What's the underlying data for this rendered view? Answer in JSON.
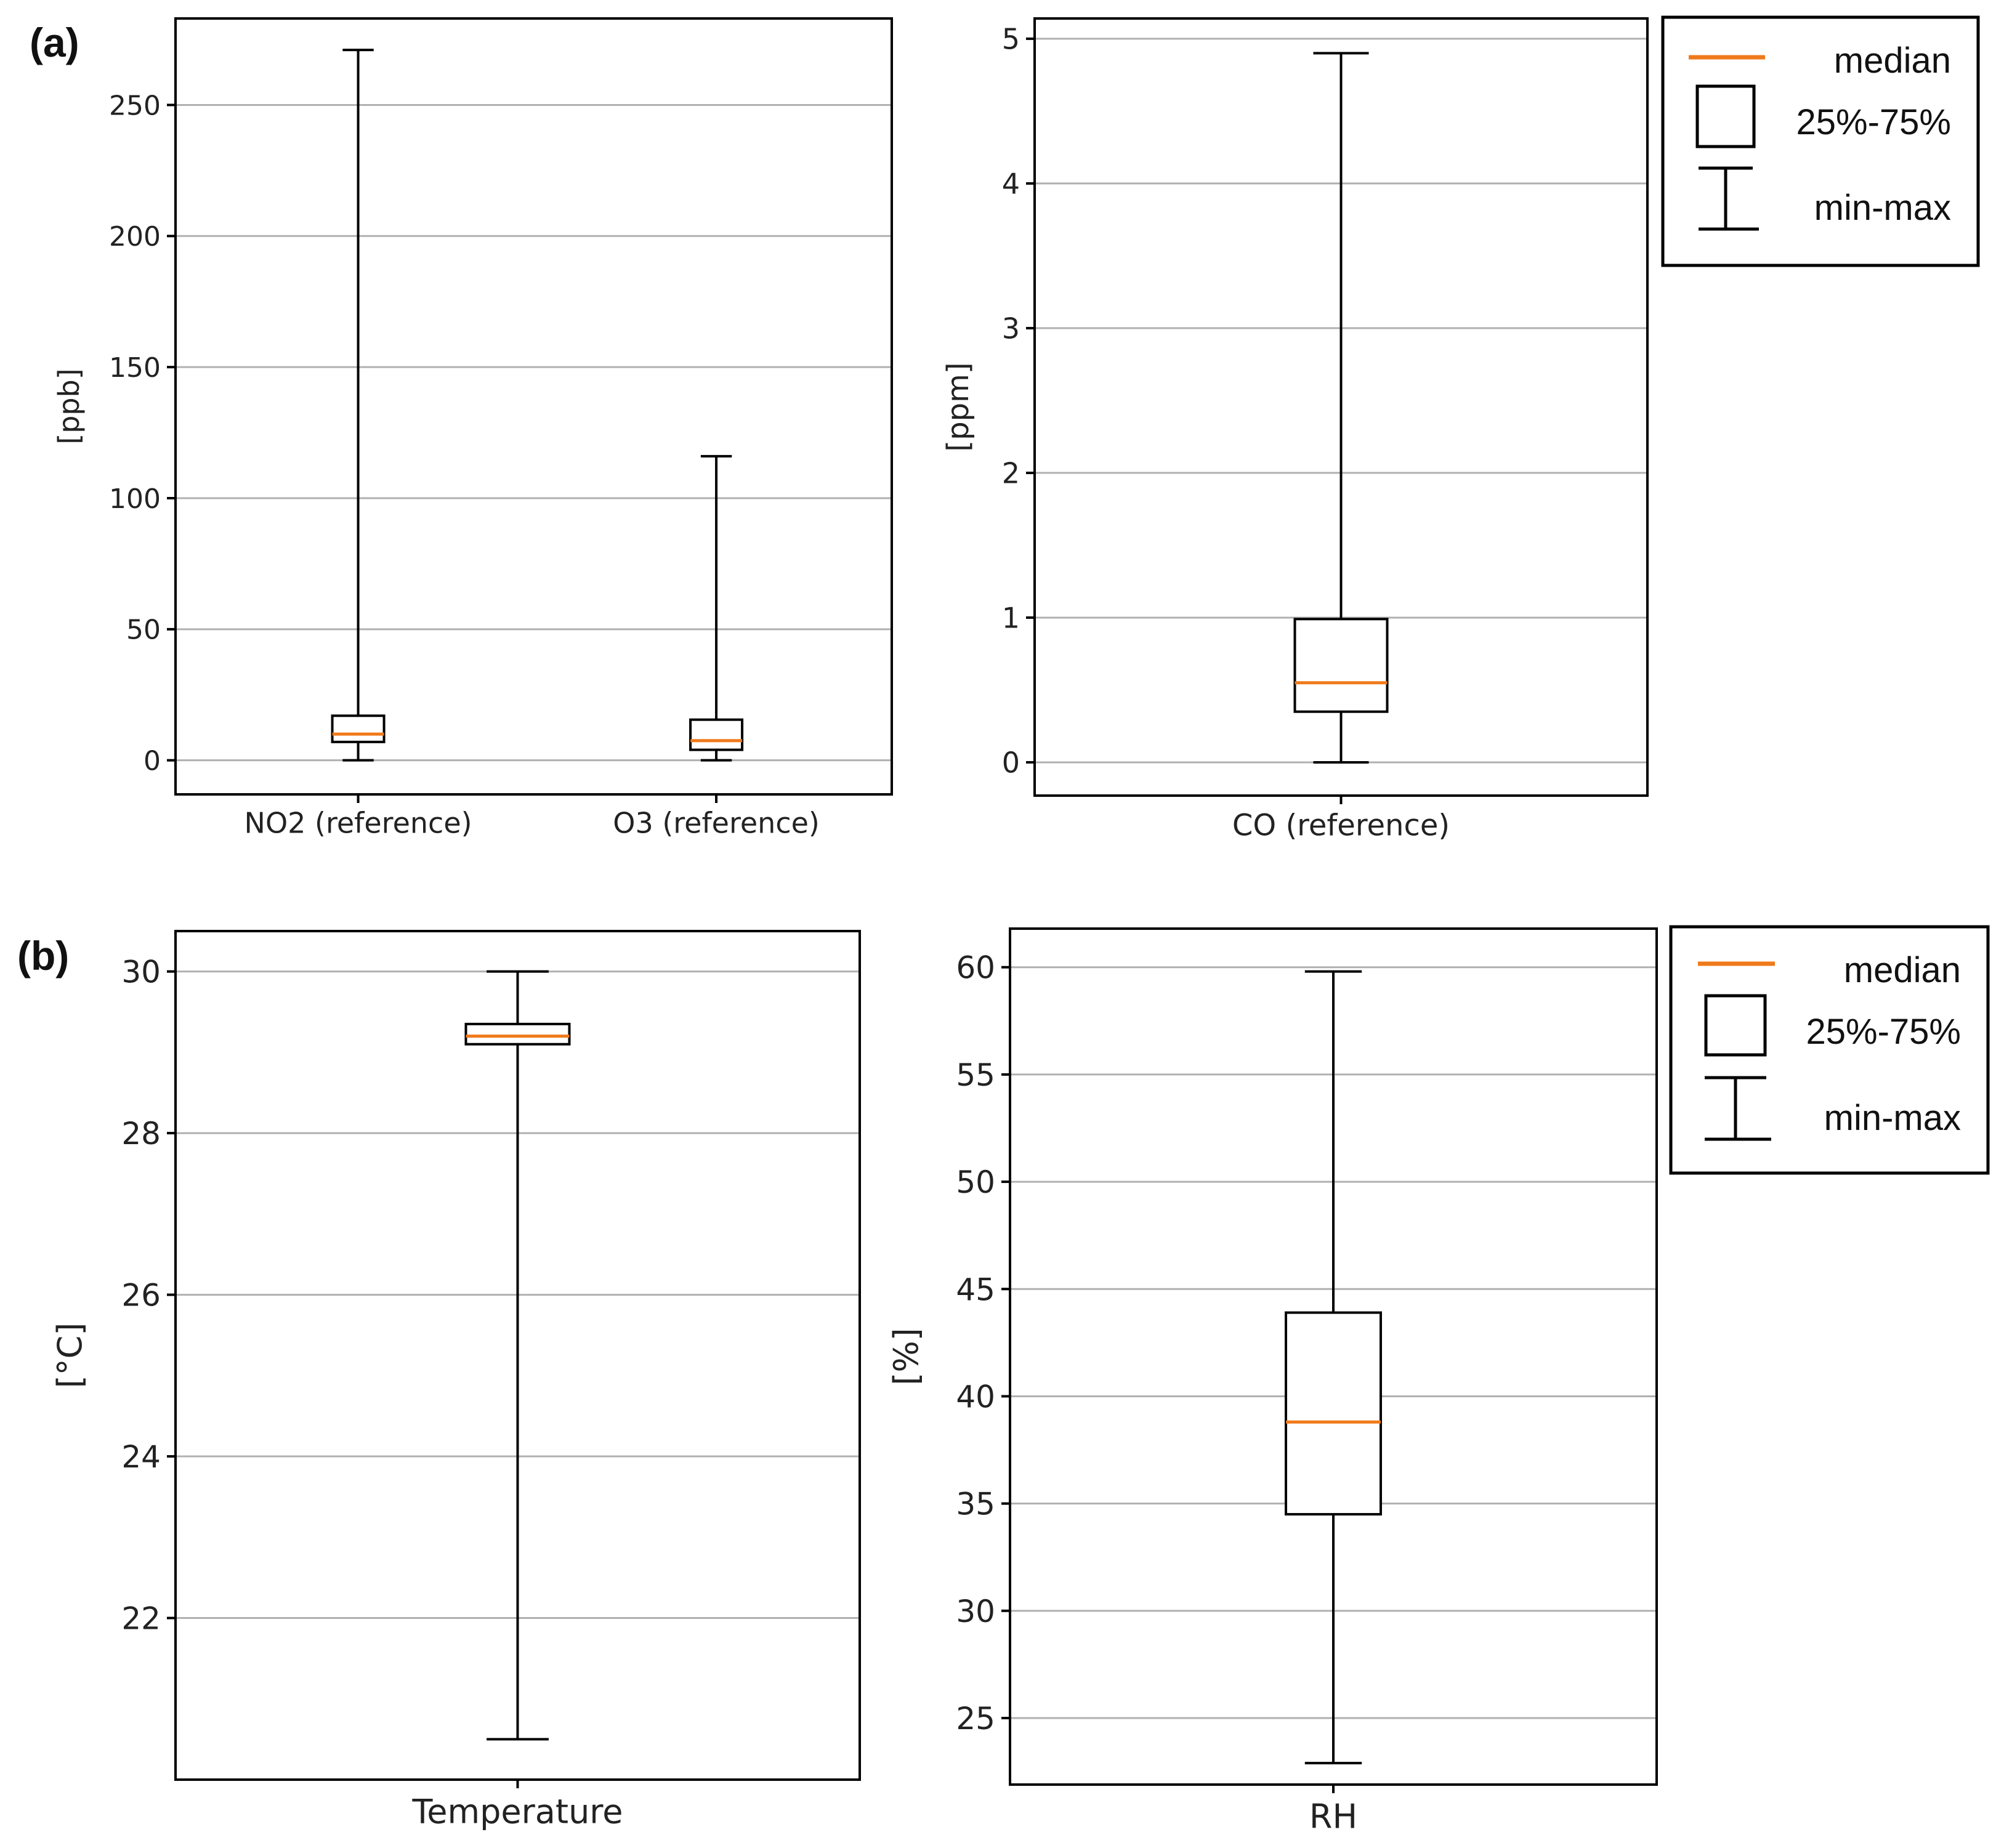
{
  "colors": {
    "median": "#f07a1a",
    "grid": "#b0b0b0",
    "axis": "#000000",
    "whisker": "#000000"
  },
  "panel_labels": {
    "a": "(a)",
    "b": "(b)"
  },
  "legend": {
    "median": "median",
    "box": "25%-75%",
    "whisker": "min-max"
  },
  "chart_data": [
    {
      "type": "box",
      "name": "no2-o3-panel",
      "ylabel": "[ppb]",
      "ylim": [
        -13,
        283
      ],
      "yticks": [
        0,
        50,
        100,
        150,
        200,
        250
      ],
      "ytick_labels": [
        "0",
        "50",
        "100",
        "150",
        "200",
        "250"
      ],
      "grid": true,
      "categories": [
        "NO2 (reference)",
        "O3 (reference)"
      ],
      "boxes": [
        {
          "name": "NO2 (reference)",
          "min": 0,
          "q1": 7,
          "median": 10,
          "q3": 17,
          "max": 271
        },
        {
          "name": "O3 (reference)",
          "min": 0,
          "q1": 4,
          "median": 7.5,
          "q3": 15.5,
          "max": 116
        }
      ]
    },
    {
      "type": "box",
      "name": "co-panel",
      "ylabel": "[ppm]",
      "ylim": [
        -0.23,
        5.14
      ],
      "yticks": [
        0,
        1,
        2,
        3,
        4,
        5
      ],
      "ytick_labels": [
        "0",
        "1",
        "2",
        "3",
        "4",
        "5"
      ],
      "grid": true,
      "categories": [
        "CO (reference)"
      ],
      "boxes": [
        {
          "name": "CO (reference)",
          "min": 0,
          "q1": 0.35,
          "median": 0.55,
          "q3": 0.99,
          "max": 4.9
        }
      ]
    },
    {
      "type": "box",
      "name": "temperature-panel",
      "ylabel": "[°C]",
      "ylim": [
        20.0,
        30.5
      ],
      "yticks": [
        22,
        24,
        26,
        28,
        30
      ],
      "ytick_labels": [
        "22",
        "24",
        "26",
        "28",
        "30"
      ],
      "grid": true,
      "categories": [
        "Temperature"
      ],
      "boxes": [
        {
          "name": "Temperature",
          "min": 20.5,
          "q1": 29.1,
          "median": 29.2,
          "q3": 29.35,
          "max": 30.0
        }
      ]
    },
    {
      "type": "box",
      "name": "rh-panel",
      "ylabel": "[%]",
      "ylim": [
        21.9,
        61.8
      ],
      "yticks": [
        25,
        30,
        35,
        40,
        45,
        50,
        55,
        60
      ],
      "ytick_labels": [
        "25",
        "30",
        "35",
        "40",
        "45",
        "50",
        "55",
        "60"
      ],
      "grid": true,
      "categories": [
        "RH"
      ],
      "boxes": [
        {
          "name": "RH",
          "min": 22.9,
          "q1": 34.5,
          "median": 38.8,
          "q3": 43.9,
          "max": 59.8
        }
      ]
    }
  ]
}
